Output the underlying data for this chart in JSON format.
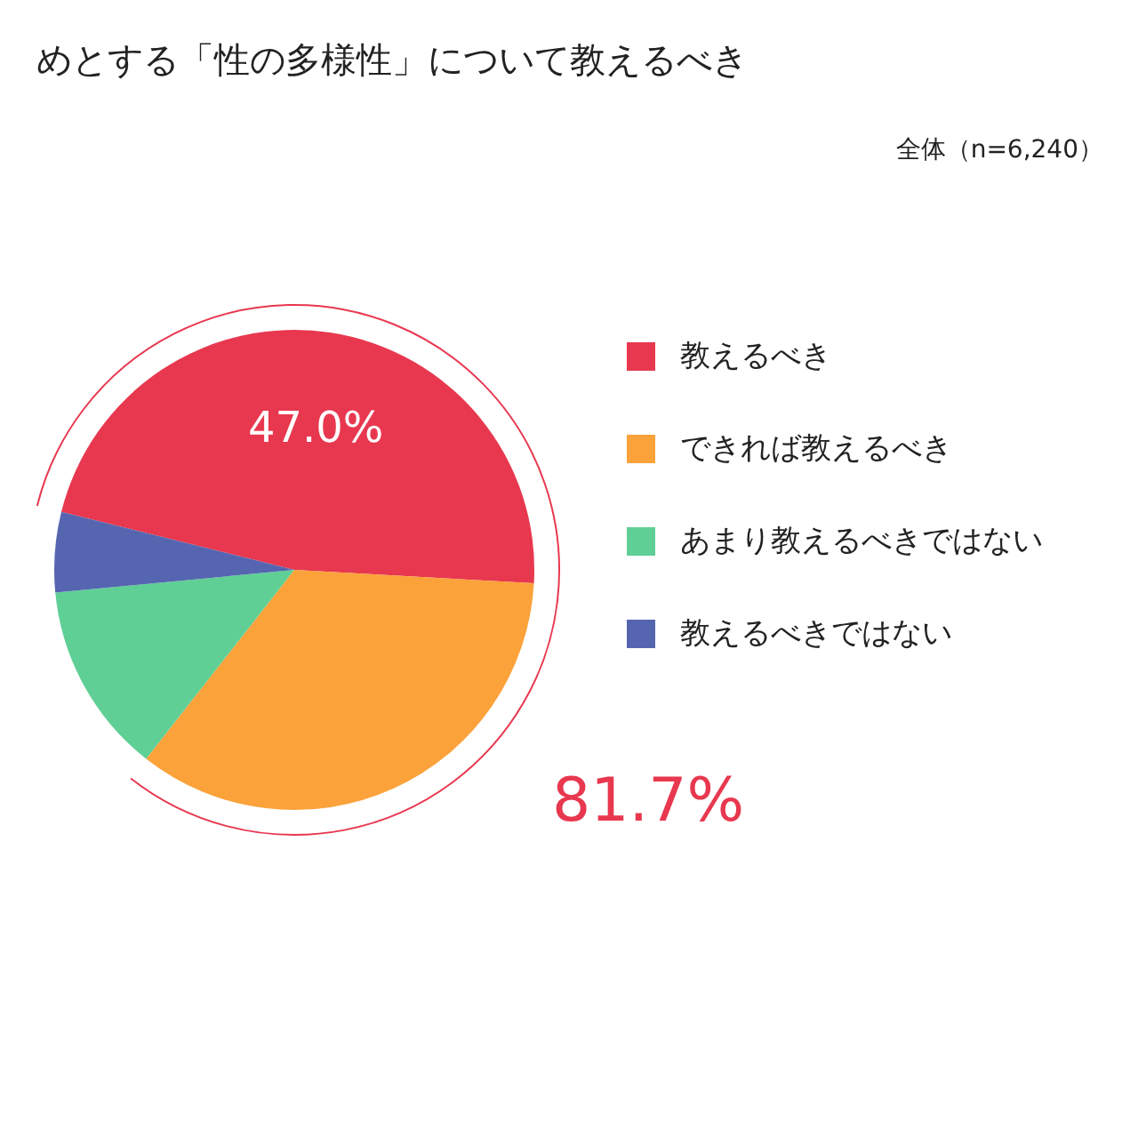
{
  "chart_data": {
    "type": "pie",
    "title": "めとする「性の多様性」について教えるべき",
    "subtitle": "全体（n=6,240）",
    "categories": [
      "教えるべき",
      "できれば教えるべき",
      "あまり教えるべきではない",
      "教えるべきではない"
    ],
    "values": [
      47.0,
      34.7,
      12.9,
      5.4
    ],
    "colors": [
      "#e8384f",
      "#fba23a",
      "#5fcf95",
      "#5565b0"
    ],
    "value_labels": [
      "47.0%",
      null,
      null,
      null
    ],
    "annotations": [
      "81.7%"
    ],
    "legend": "right"
  }
}
